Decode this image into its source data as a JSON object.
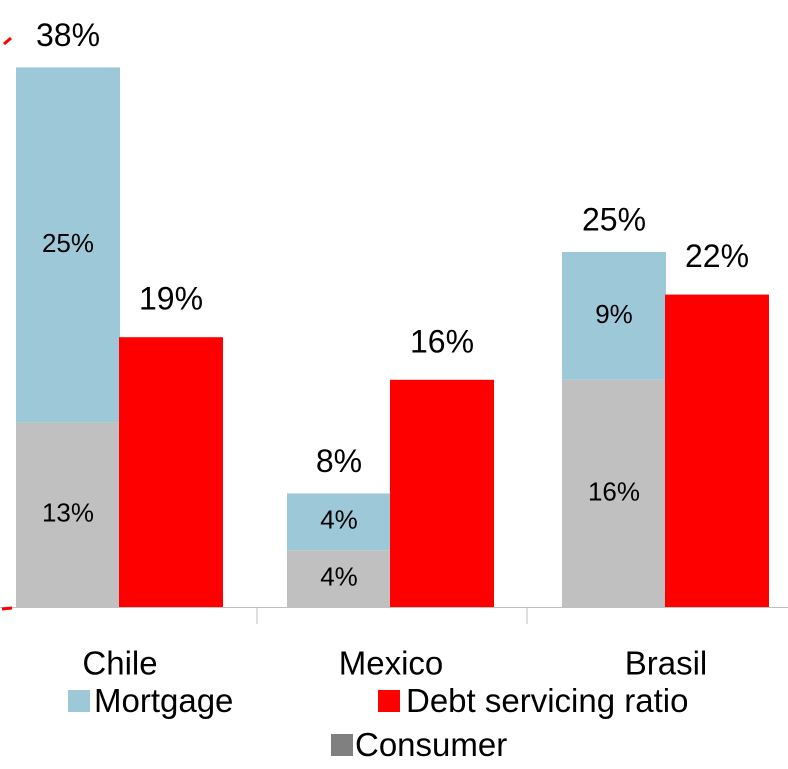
{
  "chart_data": {
    "type": "bar",
    "stacked": true,
    "categories": [
      "Chile",
      "Mexico",
      "Brasil"
    ],
    "series": [
      {
        "name": "Consumer",
        "stack": "household_debt",
        "color": "#C0C0C0",
        "values": [
          13,
          4,
          16
        ],
        "labels": [
          "13%",
          "4%",
          "16%"
        ]
      },
      {
        "name": "Mortgage",
        "stack": "household_debt",
        "color": "#9DC8D8",
        "values": [
          25,
          4,
          9
        ],
        "labels": [
          "25%",
          "4%",
          "9%"
        ]
      },
      {
        "name": "Debt servicing ratio",
        "stack": "dsr",
        "color": "#FF0000",
        "values": [
          19,
          16,
          22
        ],
        "labels": [
          "19%",
          "16%",
          "22%"
        ]
      }
    ],
    "stack_totals": {
      "values": [
        38,
        8,
        25
      ],
      "labels": [
        "38%",
        "8%",
        "25%"
      ]
    },
    "ylim": [
      0,
      40
    ],
    "grid": false,
    "legend_position": "bottom",
    "legend": {
      "mortgage": "Mortgage",
      "dsr": "Debt servicing ratio",
      "consumer": "Consumer"
    },
    "colors": {
      "legend_consumer": "#808080",
      "axis": "#BFBFBF",
      "accent_mark": "#FF0000"
    }
  }
}
